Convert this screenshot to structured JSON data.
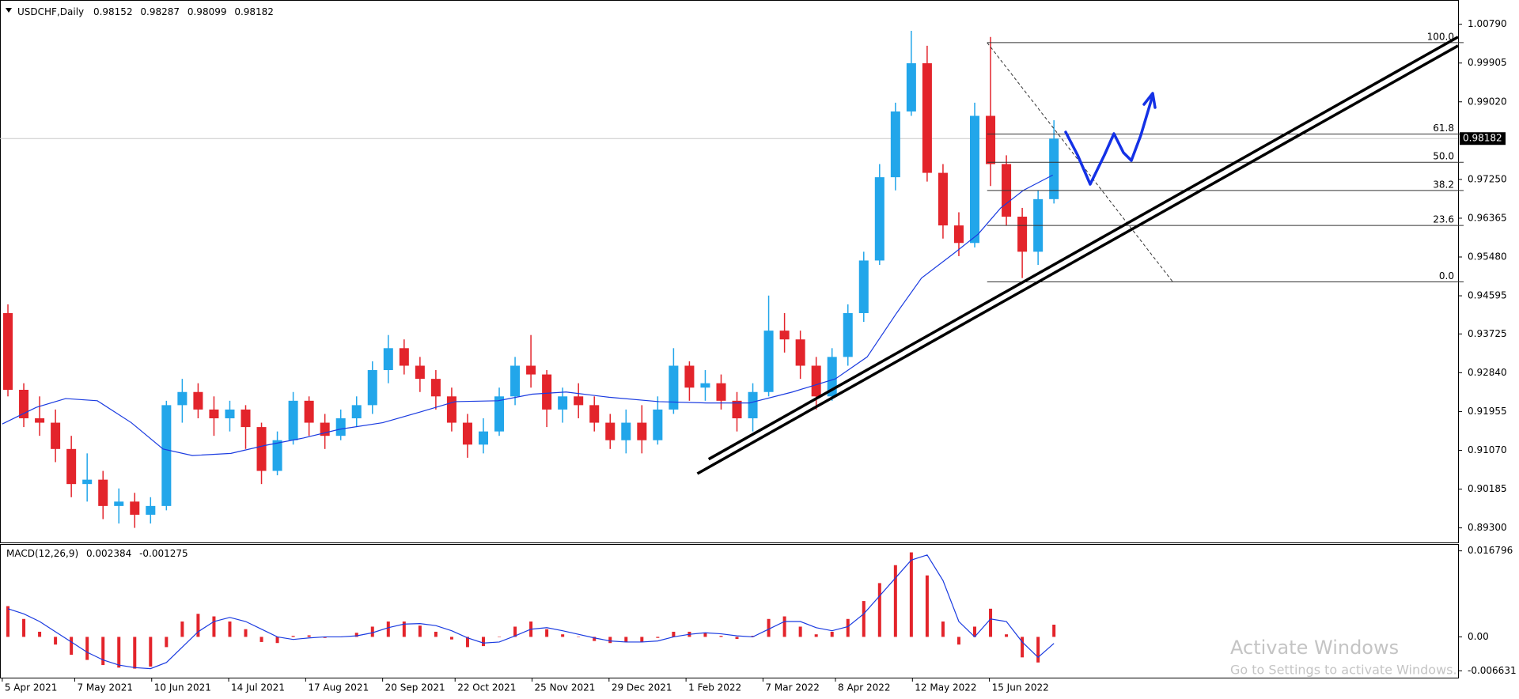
{
  "chart_data": {
    "type": "candlestick",
    "title": "USDCHF,Daily",
    "ohlc": [
      0.98152,
      0.98287,
      0.98099,
      0.98182
    ],
    "x": [
      "2021-04-05",
      "2021-04-12",
      "2021-04-19",
      "2021-04-26",
      "2021-05-03",
      "2021-05-10",
      "2021-05-17",
      "2021-05-24",
      "2021-05-31",
      "2021-06-07",
      "2021-06-14",
      "2021-06-21",
      "2021-06-28",
      "2021-07-05",
      "2021-07-12",
      "2021-07-19",
      "2021-07-26",
      "2021-08-02",
      "2021-08-09",
      "2021-08-16",
      "2021-08-23",
      "2021-08-30",
      "2021-09-06",
      "2021-09-13",
      "2021-09-20",
      "2021-09-27",
      "2021-10-04",
      "2021-10-11",
      "2021-10-18",
      "2021-10-25",
      "2021-11-01",
      "2021-11-08",
      "2021-11-15",
      "2021-11-22",
      "2021-11-29",
      "2021-12-06",
      "2021-12-13",
      "2021-12-20",
      "2021-12-27",
      "2022-01-03",
      "2022-01-10",
      "2022-01-17",
      "2022-01-24",
      "2022-01-31",
      "2022-02-07",
      "2022-02-14",
      "2022-02-21",
      "2022-02-28",
      "2022-03-07",
      "2022-03-14",
      "2022-03-21",
      "2022-03-28",
      "2022-04-04",
      "2022-04-11",
      "2022-04-18",
      "2022-04-25",
      "2022-05-02",
      "2022-05-09",
      "2022-05-16",
      "2022-05-23",
      "2022-05-30",
      "2022-06-06",
      "2022-06-13",
      "2022-06-20",
      "2022-06-27",
      "2022-07-04",
      "2022-07-11"
    ],
    "open": [
      0.942,
      0.9245,
      0.918,
      0.917,
      0.911,
      0.903,
      0.904,
      0.898,
      0.899,
      0.896,
      0.898,
      0.921,
      0.924,
      0.92,
      0.918,
      0.92,
      0.916,
      0.906,
      0.913,
      0.922,
      0.917,
      0.914,
      0.918,
      0.921,
      0.929,
      0.934,
      0.93,
      0.927,
      0.923,
      0.917,
      0.912,
      0.915,
      0.923,
      0.93,
      0.928,
      0.92,
      0.923,
      0.921,
      0.917,
      0.913,
      0.917,
      0.913,
      0.92,
      0.93,
      0.925,
      0.926,
      0.922,
      0.918,
      0.924,
      0.938,
      0.936,
      0.93,
      0.923,
      0.932,
      0.942,
      0.954,
      0.973,
      0.988,
      0.999,
      0.974,
      0.962,
      0.958,
      0.987,
      0.976,
      0.964,
      0.956,
      0.968
    ],
    "high": [
      0.944,
      0.926,
      0.923,
      0.92,
      0.914,
      0.91,
      0.906,
      0.902,
      0.901,
      0.9,
      0.922,
      0.927,
      0.926,
      0.923,
      0.922,
      0.921,
      0.917,
      0.915,
      0.924,
      0.923,
      0.919,
      0.92,
      0.923,
      0.931,
      0.937,
      0.936,
      0.932,
      0.929,
      0.925,
      0.919,
      0.918,
      0.925,
      0.932,
      0.937,
      0.929,
      0.925,
      0.926,
      0.923,
      0.919,
      0.92,
      0.921,
      0.923,
      0.934,
      0.931,
      0.929,
      0.928,
      0.924,
      0.926,
      0.946,
      0.942,
      0.938,
      0.932,
      0.934,
      0.944,
      0.956,
      0.976,
      0.99,
      1.0064,
      1.003,
      0.976,
      0.965,
      0.99,
      1.005,
      0.978,
      0.966,
      0.97,
      0.986
    ],
    "low": [
      0.923,
      0.916,
      0.914,
      0.908,
      0.9,
      0.899,
      0.895,
      0.894,
      0.893,
      0.894,
      0.897,
      0.917,
      0.918,
      0.914,
      0.915,
      0.911,
      0.903,
      0.905,
      0.912,
      0.914,
      0.911,
      0.913,
      0.916,
      0.919,
      0.926,
      0.928,
      0.924,
      0.92,
      0.915,
      0.909,
      0.91,
      0.914,
      0.921,
      0.925,
      0.916,
      0.917,
      0.918,
      0.915,
      0.911,
      0.91,
      0.91,
      0.912,
      0.919,
      0.922,
      0.922,
      0.92,
      0.915,
      0.915,
      0.923,
      0.933,
      0.927,
      0.92,
      0.922,
      0.93,
      0.94,
      0.953,
      0.97,
      0.987,
      0.972,
      0.959,
      0.955,
      0.957,
      0.971,
      0.962,
      0.95,
      0.953,
      0.967
    ],
    "close": [
      0.9245,
      0.918,
      0.917,
      0.911,
      0.903,
      0.904,
      0.898,
      0.899,
      0.896,
      0.898,
      0.921,
      0.924,
      0.92,
      0.918,
      0.92,
      0.916,
      0.906,
      0.913,
      0.922,
      0.917,
      0.914,
      0.918,
      0.921,
      0.929,
      0.934,
      0.93,
      0.927,
      0.923,
      0.917,
      0.912,
      0.915,
      0.923,
      0.93,
      0.928,
      0.92,
      0.923,
      0.921,
      0.917,
      0.913,
      0.917,
      0.913,
      0.92,
      0.93,
      0.925,
      0.926,
      0.922,
      0.918,
      0.924,
      0.938,
      0.936,
      0.93,
      0.923,
      0.932,
      0.942,
      0.954,
      0.973,
      0.988,
      0.999,
      0.974,
      0.962,
      0.958,
      0.987,
      0.976,
      0.964,
      0.956,
      0.968,
      0.9818
    ],
    "colors": {
      "up": "#22a6ea",
      "down": "#e3242b"
    },
    "moving_average": {
      "x": [
        "2021-04-05",
        "2021-04-20",
        "2021-05-03",
        "2021-05-17",
        "2021-06-01",
        "2021-06-15",
        "2021-06-28",
        "2021-07-15",
        "2021-07-30",
        "2021-08-16",
        "2021-09-01",
        "2021-09-20",
        "2021-10-07",
        "2021-10-22",
        "2021-11-10",
        "2021-11-25",
        "2021-12-10",
        "2021-12-29",
        "2022-01-20",
        "2022-02-10",
        "2022-03-01",
        "2022-03-20",
        "2022-04-08",
        "2022-04-22",
        "2022-05-05",
        "2022-05-16",
        "2022-05-30",
        "2022-06-10",
        "2022-06-20",
        "2022-06-30",
        "2022-07-13"
      ],
      "values": [
        0.9167,
        0.9205,
        0.9225,
        0.922,
        0.917,
        0.911,
        0.9095,
        0.91,
        0.9118,
        0.9135,
        0.9155,
        0.917,
        0.9195,
        0.9218,
        0.922,
        0.9235,
        0.924,
        0.9228,
        0.9218,
        0.9215,
        0.9215,
        0.924,
        0.927,
        0.932,
        0.942,
        0.95,
        0.9555,
        0.96,
        0.966,
        0.97,
        0.9735
      ],
      "color": "#1a3be0"
    },
    "current_price": 0.98182,
    "xlim": [
      "2021-04-04",
      "2023-01-08"
    ],
    "xticks": [
      {
        "value": "2021-04-05",
        "label": "5 Apr 2021"
      },
      {
        "value": "2021-05-07",
        "label": "7 May 2021"
      },
      {
        "value": "2021-06-10",
        "label": "10 Jun 2021"
      },
      {
        "value": "2021-07-14",
        "label": "14 Jul 2021"
      },
      {
        "value": "2021-08-17",
        "label": "17 Aug 2021"
      },
      {
        "value": "2021-09-20",
        "label": "20 Sep 2021"
      },
      {
        "value": "2021-10-22",
        "label": "22 Oct 2021"
      },
      {
        "value": "2021-11-25",
        "label": "25 Nov 2021"
      },
      {
        "value": "2021-12-29",
        "label": "29 Dec 2021"
      },
      {
        "value": "2022-02-01",
        "label": "1 Feb 2022"
      },
      {
        "value": "2022-03-07",
        "label": "7 Mar 2022"
      },
      {
        "value": "2022-04-08",
        "label": "8 Apr 2022"
      },
      {
        "value": "2022-05-12",
        "label": "12 May 2022"
      },
      {
        "value": "2022-06-15",
        "label": "15 Jun 2022"
      }
    ],
    "ylim": [
      0.88968,
      1.01343
    ],
    "yticks": [
      {
        "value": 1.0079,
        "label": "1.00790"
      },
      0.99905,
      {
        "value": 0.9902,
        "label": "0.99020"
      },
      {
        "value": 0.9725,
        "label": "0.97250"
      },
      0.96365,
      {
        "value": 0.9548,
        "label": "0.95480"
      },
      0.94595,
      0.93725,
      {
        "value": 0.9284,
        "label": "0.92840"
      },
      0.91955,
      {
        "value": 0.9107,
        "label": "0.91070"
      },
      0.90185,
      {
        "value": 0.893,
        "label": "0.89300"
      }
    ],
    "fibonacci": {
      "from": {
        "x": "2022-06-14",
        "price": 1.00371
      },
      "to": {
        "x": "2022-09-04",
        "price": 0.94912
      },
      "levels": [
        {
          "value": 100,
          "label": "100.0"
        },
        61.8,
        {
          "value": 50,
          "label": "50.0"
        },
        38.2,
        23.6,
        {
          "value": 0,
          "label": "0.0"
        }
      ]
    },
    "trendlines": [
      {
        "from": {
          "x": "2022-02-11",
          "price": 0.90868
        },
        "to": {
          "x": "2023-01-08",
          "price": 1.005
        }
      },
      {
        "from": {
          "x": "2022-02-06",
          "price": 0.90537
        },
        "to": {
          "x": "2023-01-08",
          "price": 1.003
        }
      }
    ],
    "macd": {
      "title": "MACD(12,26,9)",
      "current": [
        0.002384,
        -0.001275
      ],
      "histogram": [
        0.006,
        0.0035,
        0.001,
        -0.0015,
        -0.0035,
        -0.0045,
        -0.0055,
        -0.006,
        -0.0062,
        -0.0058,
        -0.002,
        0.003,
        0.0045,
        0.004,
        0.003,
        0.0015,
        -0.001,
        -0.0012,
        0.0002,
        0.0003,
        -0.0002,
        0.0,
        0.0008,
        0.002,
        0.003,
        0.003,
        0.0022,
        0.001,
        -0.0005,
        -0.002,
        -0.0018,
        0.0,
        0.002,
        0.003,
        0.0015,
        0.0005,
        0.0,
        -0.0008,
        -0.0012,
        -0.001,
        -0.001,
        -0.0002,
        0.001,
        0.001,
        0.0008,
        0.0002,
        -0.0004,
        0.0002,
        0.0035,
        0.004,
        0.002,
        0.0005,
        0.001,
        0.0035,
        0.007,
        0.0105,
        0.014,
        0.0165,
        0.012,
        0.003,
        -0.0015,
        0.002,
        0.0055,
        0.0005,
        -0.004,
        -0.005,
        0.002384
      ],
      "signal": [
        0.0055,
        0.0045,
        0.003,
        0.001,
        -0.001,
        -0.003,
        -0.0045,
        -0.0055,
        -0.006,
        -0.0062,
        -0.005,
        -0.002,
        0.001,
        0.003,
        0.0038,
        0.003,
        0.0015,
        0.0,
        -0.0005,
        -0.0002,
        0.0,
        0.0,
        0.0002,
        0.0008,
        0.0018,
        0.0025,
        0.0026,
        0.0022,
        0.0012,
        -0.0002,
        -0.0012,
        -0.001,
        0.0002,
        0.0015,
        0.0018,
        0.0012,
        0.0005,
        -0.0002,
        -0.0008,
        -0.001,
        -0.001,
        -0.0008,
        0.0,
        0.0005,
        0.0008,
        0.0006,
        0.0002,
        0.0,
        0.0015,
        0.003,
        0.003,
        0.0018,
        0.0012,
        0.002,
        0.0045,
        0.008,
        0.0115,
        0.015,
        0.016,
        0.011,
        0.003,
        0.0,
        0.0035,
        0.003,
        -0.001,
        -0.004,
        -0.001275
      ],
      "histogram_color": "#e3242b",
      "signal_color": "#1a3be0",
      "ylim": [
        -0.00796,
        0.01813
      ],
      "yticks": [
        0.016796,
        {
          "value": 0,
          "label": "0.00"
        },
        -0.006631
      ]
    }
  },
  "watermark": {
    "title": "Activate Windows",
    "subtitle": "Go to Settings to activate Windows."
  }
}
